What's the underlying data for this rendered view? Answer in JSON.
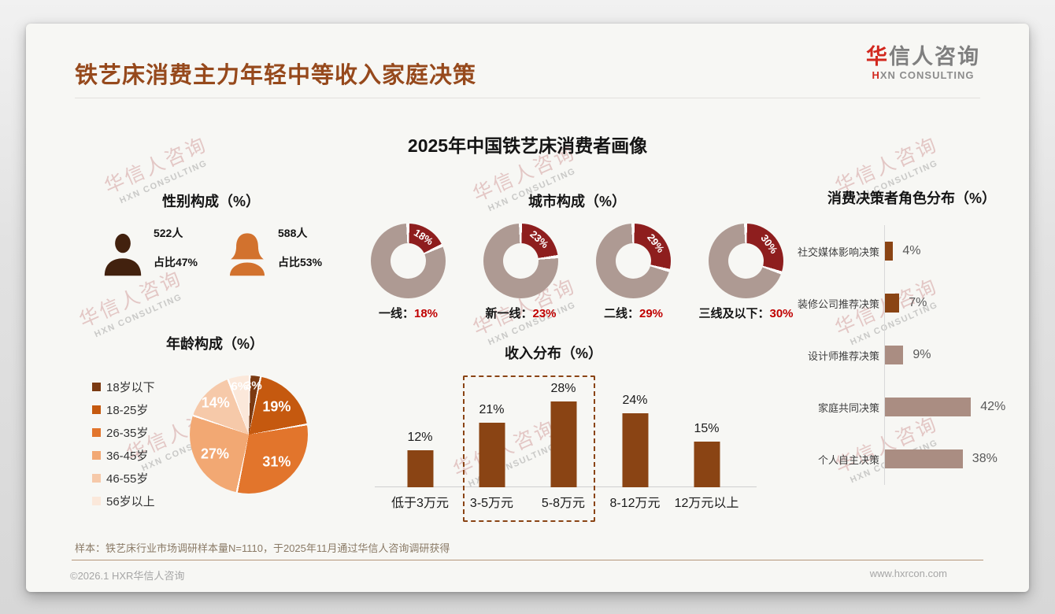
{
  "page": {
    "background_color": "#e2e2e2",
    "card_color": "#f7f7f4",
    "header": {
      "title": "铁艺床消费主力年轻中等收入家庭决策",
      "title_color": "#96491c",
      "logo_first_char": "华",
      "logo_rest": "信人咨询",
      "logo_sub": "HXN CONSULTING",
      "logo_accent_color": "#d2281e"
    },
    "main_title": "2025年中国铁艺床消费者画像",
    "watermark": {
      "line1": "华信人咨询",
      "line2": "HXN CONSULTING"
    },
    "footnote": "样本：铁艺床行业市场调研样本量N=1110，于2025年11月通过华信人咨询调研获得",
    "copyright": "©2026.1 HXR华信人咨询",
    "website": "www.hxrcon.com"
  },
  "chart_data": [
    {
      "type": "pictogram",
      "title": "性别构成（%）",
      "groups": [
        {
          "name": "male",
          "count_label": "522人",
          "share_label": "占比47%",
          "color": "#42210e"
        },
        {
          "name": "female",
          "count_label": "588人",
          "share_label": "占比53%",
          "color": "#d2722e"
        }
      ]
    },
    {
      "type": "donut-set",
      "title": "城市构成（%）",
      "slice_color": "#8e1e1e",
      "base_color": "#ae9a93",
      "value_color": "#c00000",
      "items": [
        {
          "label": "一线",
          "value": 18,
          "value_label": "18%"
        },
        {
          "label": "新一线",
          "value": 23,
          "value_label": "23%"
        },
        {
          "label": "二线",
          "value": 29,
          "value_label": "29%"
        },
        {
          "label": "三线及以下",
          "value": 30,
          "value_label": "30%"
        }
      ]
    },
    {
      "type": "bar-horizontal",
      "title": "消费决策者角色分布（%）",
      "categories": [
        "社交媒体影响决策",
        "装修公司推荐决策",
        "设计师推荐决策",
        "家庭共同决策",
        "个人自主决策"
      ],
      "values": [
        4,
        7,
        9,
        42,
        38
      ],
      "value_labels": [
        "4%",
        "7%",
        "9%",
        "42%",
        "38%"
      ],
      "bar_colors": [
        "#8a4414",
        "#8a4414",
        "#aa8d82",
        "#aa8d82",
        "#aa8d82"
      ],
      "xlim": [
        0,
        50
      ],
      "grid": false
    },
    {
      "type": "pie",
      "title": "年龄构成（%）",
      "categories": [
        "18岁以下",
        "18-25岁",
        "26-35岁",
        "36-45岁",
        "46-55岁",
        "56岁以上"
      ],
      "values": [
        3,
        19,
        31,
        27,
        14,
        6
      ],
      "value_labels": [
        "3%",
        "19%",
        "31%",
        "27%",
        "14%",
        "6%"
      ],
      "colors": [
        "#7b3a12",
        "#c5590f",
        "#e2752c",
        "#f2a873",
        "#f6c9a9",
        "#fbe8da"
      ],
      "start_angle_deg": 0,
      "direction": "clockwise",
      "legend_position": "left"
    },
    {
      "type": "bar-vertical",
      "title": "收入分布（%）",
      "categories": [
        "低于3万元",
        "3-5万元",
        "5-8万元",
        "8-12万元",
        "12万元以上"
      ],
      "values": [
        12,
        21,
        28,
        24,
        15
      ],
      "value_labels": [
        "12%",
        "21%",
        "28%",
        "24%",
        "15%"
      ],
      "bar_color": "#8a4414",
      "highlight_box_categories": [
        "3-5万元",
        "5-8万元"
      ],
      "ylim": [
        0,
        30
      ],
      "grid": false
    }
  ]
}
